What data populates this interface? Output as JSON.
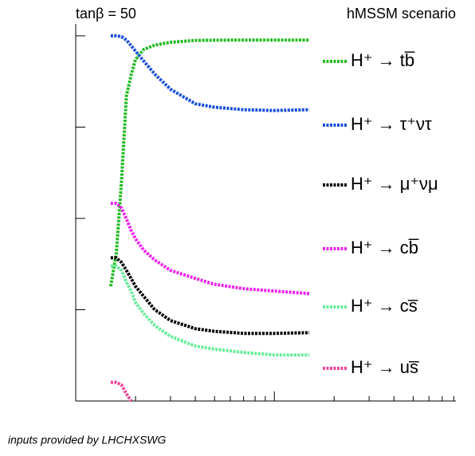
{
  "chart_data": {
    "type": "line",
    "annotations": [
      "tanβ = 50",
      "hMSSM scenario",
      "inputs provided by LHCHXSWG"
    ],
    "x": [
      150,
      160,
      170,
      180,
      190,
      200,
      220,
      250,
      300,
      400,
      500,
      700,
      1000,
      1500
    ],
    "series": [
      {
        "name": "H⁺ → tb̅",
        "color": "#22bb22",
        "values": [
          0.0018,
          0.0041,
          0.025,
          0.22,
          0.37,
          0.55,
          0.71,
          0.79,
          0.85,
          0.89,
          0.895,
          0.9,
          0.9,
          0.9
        ]
      },
      {
        "name": "H⁺ → τ⁺ντ",
        "color": "#1a4fd8",
        "values": [
          1.0,
          1.0,
          0.98,
          0.9,
          0.78,
          0.68,
          0.53,
          0.38,
          0.26,
          0.18,
          0.165,
          0.155,
          0.152,
          0.155
        ]
      },
      {
        "name": "H⁺ → μ⁺νμ",
        "color": "#000000",
        "values": [
          0.0037,
          0.0037,
          0.0033,
          0.0027,
          0.0022,
          0.0018,
          0.0014,
          0.001,
          0.00076,
          0.00062,
          0.00058,
          0.00055,
          0.00055,
          0.00056
        ]
      },
      {
        "name": "H⁺ → cb̅",
        "color": "#ee22ee",
        "values": [
          0.0146,
          0.0146,
          0.013,
          0.0099,
          0.0074,
          0.006,
          0.0045,
          0.0035,
          0.0027,
          0.0022,
          0.0019,
          0.0017,
          0.0016,
          0.0015
        ]
      },
      {
        "name": "H⁺ → cs̅",
        "color": "#66ee99",
        "values": [
          0.003,
          0.003,
          0.0027,
          0.002,
          0.0016,
          0.0012,
          0.00091,
          0.00067,
          0.00051,
          0.0004,
          0.00037,
          0.00034,
          0.00032,
          0.00032
        ]
      },
      {
        "name": "H⁺ → us̅",
        "color": "#ee4499",
        "values": [
          0.00016,
          0.00016,
          0.00015,
          0.00012,
          0.0001,
          null,
          null,
          null,
          null,
          null,
          null,
          null,
          null,
          null
        ]
      }
    ],
    "xlim": [
      100,
      8200
    ],
    "ylim": [
      0.0001,
      1.35
    ],
    "xticks": [
      200,
      300,
      400,
      500,
      600,
      700,
      800,
      900,
      1000,
      2000,
      3000,
      4000,
      5000,
      6000,
      7000,
      8000
    ],
    "yticks": [
      0.001,
      0.01,
      0.1,
      1
    ],
    "xlog": true,
    "ylog": true
  }
}
